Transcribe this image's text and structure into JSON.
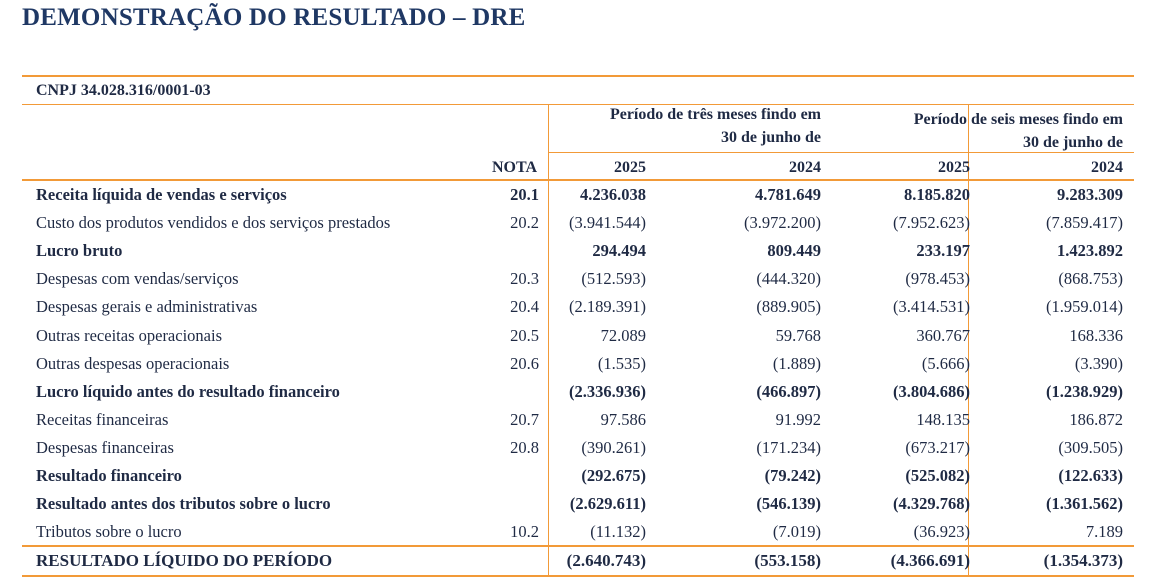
{
  "title": "DEMONSTRAÇÃO DO RESULTADO – DRE",
  "cnpj": "CNPJ 34.028.316/0001-03",
  "header": {
    "period_3m": [
      "Período de três meses findo em",
      "30 de junho de"
    ],
    "period_6m": [
      "Período de seis meses findo em",
      "30 de junho de"
    ],
    "nota": "NOTA",
    "years": [
      "2025",
      "2024",
      "2025",
      "2024"
    ]
  },
  "rows": [
    {
      "label": "Receita líquida de vendas e serviços",
      "nota": "20.1",
      "values": [
        "4.236.038",
        "4.781.649",
        "8.185.820",
        "9.283.309"
      ],
      "bold": true
    },
    {
      "label": "Custo dos produtos vendidos e dos serviços prestados",
      "nota": "20.2",
      "values": [
        "(3.941.544)",
        "(3.972.200)",
        "(7.952.623)",
        "(7.859.417)"
      ],
      "bold": false
    },
    {
      "label": "Lucro bruto",
      "nota": "",
      "values": [
        "294.494",
        "809.449",
        "233.197",
        "1.423.892"
      ],
      "bold": true
    },
    {
      "label": "Despesas com vendas/serviços",
      "nota": "20.3",
      "values": [
        "(512.593)",
        "(444.320)",
        "(978.453)",
        "(868.753)"
      ],
      "bold": false
    },
    {
      "label": "Despesas gerais e administrativas",
      "nota": "20.4",
      "values": [
        "(2.189.391)",
        "(889.905)",
        "(3.414.531)",
        "(1.959.014)"
      ],
      "bold": false
    },
    {
      "label": "Outras receitas operacionais",
      "nota": "20.5",
      "values": [
        "72.089",
        "59.768",
        "360.767",
        "168.336"
      ],
      "bold": false
    },
    {
      "label": "Outras despesas operacionais",
      "nota": "20.6",
      "values": [
        "(1.535)",
        "(1.889)",
        "(5.666)",
        "(3.390)"
      ],
      "bold": false
    },
    {
      "label": "Lucro líquido antes do resultado financeiro",
      "nota": "",
      "values": [
        "(2.336.936)",
        "(466.897)",
        "(3.804.686)",
        "(1.238.929)"
      ],
      "bold": true
    },
    {
      "label": "Receitas financeiras",
      "nota": "20.7",
      "values": [
        "97.586",
        "91.992",
        "148.135",
        "186.872"
      ],
      "bold": false
    },
    {
      "label": "Despesas financeiras",
      "nota": "20.8",
      "values": [
        "(390.261)",
        "(171.234)",
        "(673.217)",
        "(309.505)"
      ],
      "bold": false
    },
    {
      "label": "Resultado financeiro",
      "nota": "",
      "values": [
        "(292.675)",
        "(79.242)",
        "(525.082)",
        "(122.633)"
      ],
      "bold": true
    },
    {
      "label": "Resultado antes dos tributos sobre o lucro",
      "nota": "",
      "values": [
        "(2.629.611)",
        "(546.139)",
        "(4.329.768)",
        "(1.361.562)"
      ],
      "bold": true
    },
    {
      "label": "Tributos sobre o lucro",
      "nota": "10.2",
      "values": [
        "(11.132)",
        "(7.019)",
        "(36.923)",
        "7.189"
      ],
      "bold": false
    }
  ],
  "total": {
    "label": "RESULTADO LÍQUIDO DO PERÍODO",
    "values": [
      "(2.640.743)",
      "(553.158)",
      "(4.366.691)",
      "(1.354.373)"
    ]
  }
}
